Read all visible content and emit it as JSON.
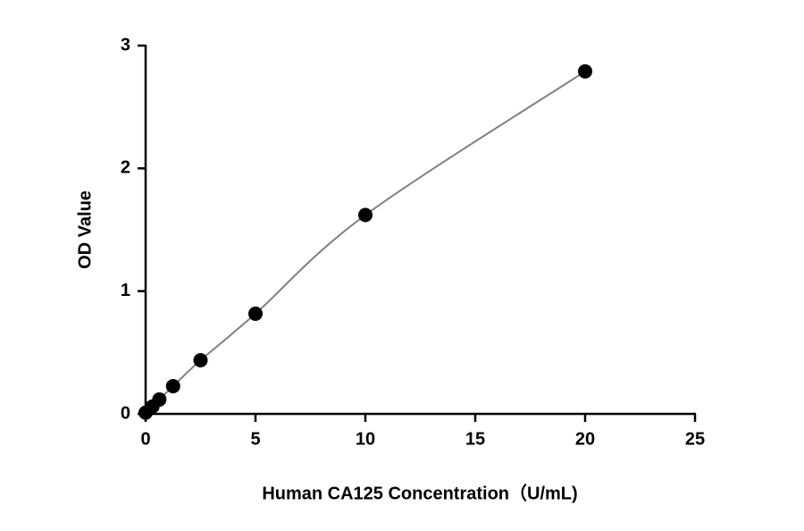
{
  "chart_data": {
    "type": "scatter",
    "x_label": "Human CA125 Concentration（U/mL)",
    "y_label": "OD Value",
    "series": [
      {
        "x": [
          0,
          0.3125,
          0.625,
          1.25,
          2.5,
          5,
          10,
          20
        ],
        "values": [
          0.01,
          0.06,
          0.117,
          0.226,
          0.437,
          0.816,
          1.62,
          2.79
        ],
        "color": "#000000",
        "line_color": "#808080"
      }
    ],
    "smooth_line": true,
    "xlim": [
      0,
      25
    ],
    "xticks": [
      0,
      5,
      10,
      15,
      20,
      25
    ],
    "ylim": [
      0,
      3
    ],
    "yticks": [
      0,
      1,
      2,
      3
    ]
  }
}
